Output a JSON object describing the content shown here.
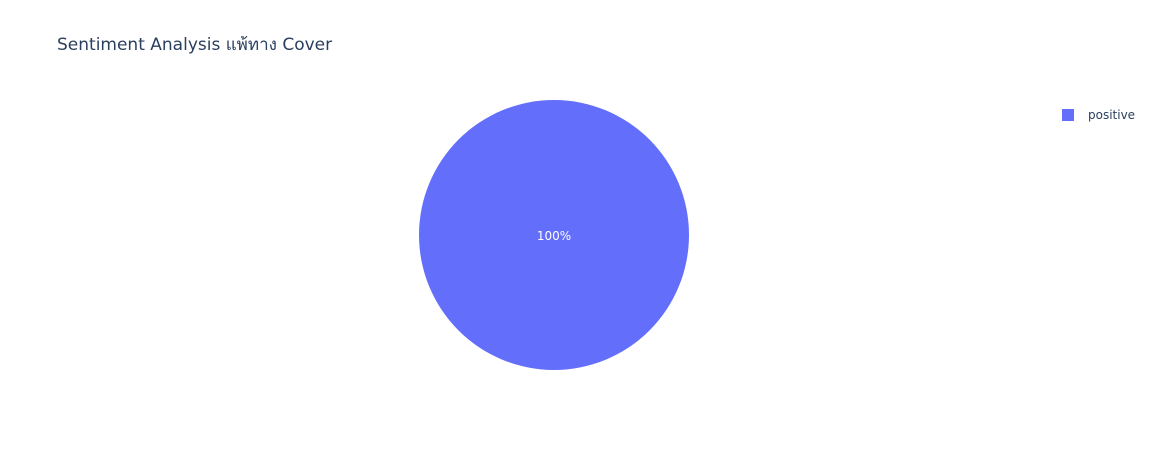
{
  "chart_data": {
    "type": "pie",
    "title": "Sentiment Analysis แพ้ทาง Cover",
    "labels": [
      "positive"
    ],
    "values": [
      100
    ],
    "text": [
      "100%"
    ],
    "colors": [
      "#636efa"
    ],
    "legend": {
      "position": "top-right",
      "entries": [
        "positive"
      ]
    }
  }
}
